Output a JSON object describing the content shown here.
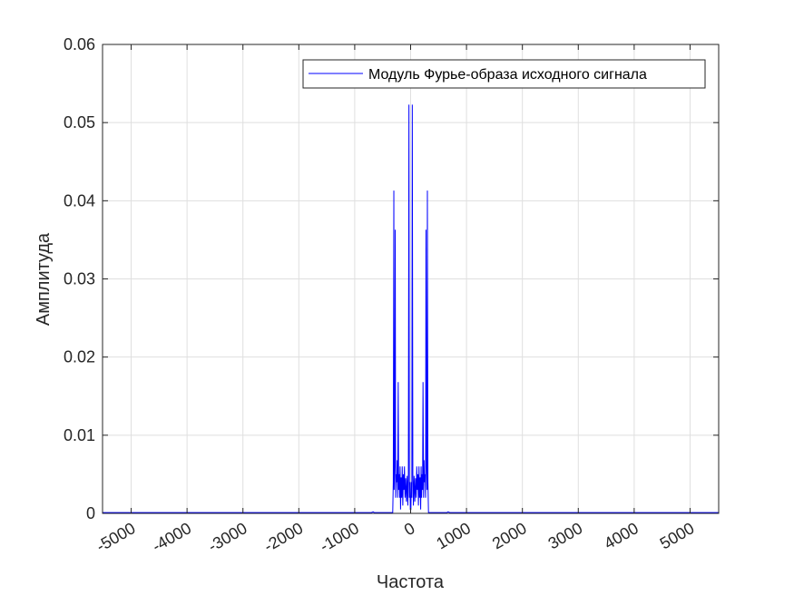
{
  "chart_data": {
    "type": "line",
    "xlabel": "Частота",
    "ylabel": "Амплитуда",
    "xlim": [
      -5512,
      5512
    ],
    "ylim": [
      0,
      0.06
    ],
    "x_ticks": [
      -5000,
      -4000,
      -3000,
      -2000,
      -1000,
      0,
      1000,
      2000,
      3000,
      4000,
      5000
    ],
    "x_tick_labels": [
      "-5000",
      "-4000",
      "-3000",
      "-2000",
      "-1000",
      "0",
      "1000",
      "2000",
      "3000",
      "4000",
      "5000"
    ],
    "y_ticks": [
      0,
      0.01,
      0.02,
      0.03,
      0.04,
      0.05,
      0.06
    ],
    "y_tick_labels": [
      "0",
      "0.01",
      "0.02",
      "0.03",
      "0.04",
      "0.05",
      "0.06"
    ],
    "grid": true,
    "legend_position": "top-right",
    "series": [
      {
        "name": "Модуль Фурье-образа исходного сигнала",
        "color": "#0000ff",
        "points": [
          [
            -5512,
            0.0001
          ],
          [
            -700,
            0.0001
          ],
          [
            -670,
            0.0002
          ],
          [
            -650,
            0.0001
          ],
          [
            -320,
            0.0001
          ],
          [
            -310,
            0.004
          ],
          [
            -300,
            0.0413
          ],
          [
            -295,
            0.003
          ],
          [
            -285,
            0.006
          ],
          [
            -275,
            0.0363
          ],
          [
            -268,
            0.002
          ],
          [
            -258,
            0.005
          ],
          [
            -248,
            0.004
          ],
          [
            -240,
            0.0068
          ],
          [
            -232,
            0.002
          ],
          [
            -222,
            0.0168
          ],
          [
            -214,
            0.003
          ],
          [
            -205,
            0.005
          ],
          [
            -196,
            0.002
          ],
          [
            -188,
            0.006
          ],
          [
            -180,
            0.0005
          ],
          [
            -170,
            0.0046
          ],
          [
            -160,
            0.002
          ],
          [
            -150,
            0.006
          ],
          [
            -140,
            0.001
          ],
          [
            -130,
            0.005
          ],
          [
            -120,
            0.003
          ],
          [
            -110,
            0.006
          ],
          [
            -100,
            0.002
          ],
          [
            -88,
            0.0045
          ],
          [
            -75,
            0.0015
          ],
          [
            -62,
            0.0048
          ],
          [
            -50,
            0.001
          ],
          [
            -40,
            0.005
          ],
          [
            -30,
            0.0523
          ],
          [
            -22,
            0.002
          ],
          [
            -12,
            0.004
          ],
          [
            -5,
            0.0005
          ],
          [
            5,
            0.0005
          ],
          [
            12,
            0.004
          ],
          [
            22,
            0.002
          ],
          [
            30,
            0.0523
          ],
          [
            40,
            0.005
          ],
          [
            50,
            0.001
          ],
          [
            62,
            0.0048
          ],
          [
            75,
            0.0015
          ],
          [
            88,
            0.0045
          ],
          [
            100,
            0.002
          ],
          [
            110,
            0.006
          ],
          [
            120,
            0.003
          ],
          [
            130,
            0.005
          ],
          [
            140,
            0.001
          ],
          [
            150,
            0.006
          ],
          [
            160,
            0.002
          ],
          [
            170,
            0.0046
          ],
          [
            180,
            0.0005
          ],
          [
            188,
            0.006
          ],
          [
            196,
            0.002
          ],
          [
            205,
            0.005
          ],
          [
            214,
            0.003
          ],
          [
            222,
            0.0168
          ],
          [
            232,
            0.002
          ],
          [
            240,
            0.0068
          ],
          [
            248,
            0.004
          ],
          [
            258,
            0.005
          ],
          [
            268,
            0.002
          ],
          [
            275,
            0.0363
          ],
          [
            285,
            0.006
          ],
          [
            295,
            0.003
          ],
          [
            300,
            0.0413
          ],
          [
            310,
            0.004
          ],
          [
            320,
            0.0001
          ],
          [
            650,
            0.0001
          ],
          [
            670,
            0.0002
          ],
          [
            700,
            0.0001
          ],
          [
            5512,
            0.0001
          ]
        ]
      }
    ]
  }
}
